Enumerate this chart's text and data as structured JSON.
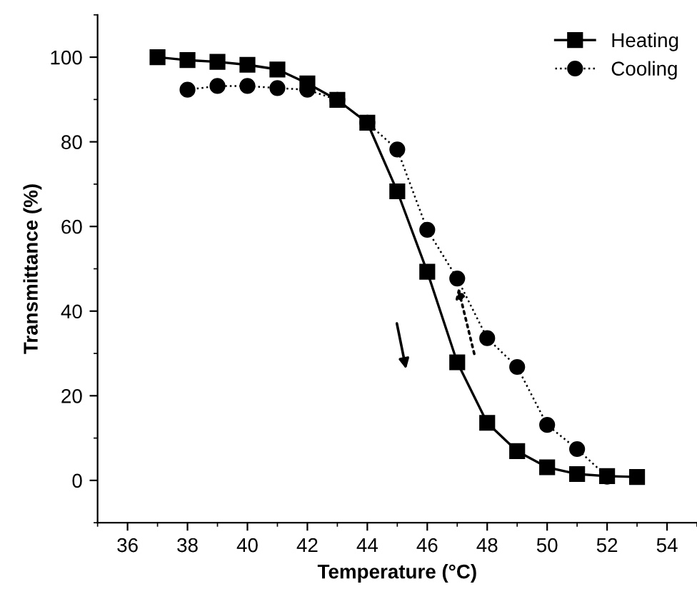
{
  "chart_data": {
    "type": "line",
    "xlabel": "Temperature (°C)",
    "ylabel": "Transmittance (%)",
    "xlim": [
      35,
      55
    ],
    "xticks": [
      36,
      38,
      40,
      42,
      44,
      46,
      48,
      50,
      52,
      54
    ],
    "ylim": [
      -10,
      110
    ],
    "yticks": [
      0,
      20,
      40,
      60,
      80,
      100
    ],
    "grid": false,
    "legend": "top right",
    "series": [
      {
        "name": "Heating",
        "color": "#000000",
        "marker": "square",
        "line_style": "solid",
        "x": [
          37,
          38,
          39,
          40,
          41,
          42,
          43,
          44,
          45,
          46,
          47,
          48,
          49,
          50,
          51,
          52,
          53
        ],
        "values": [
          100,
          99.3,
          98.9,
          98.2,
          97.1,
          93.8,
          89.9,
          84.5,
          68.3,
          49.3,
          27.9,
          13.6,
          6.9,
          3.1,
          1.5,
          1.0,
          0.8
        ]
      },
      {
        "name": "Cooling",
        "color": "#000000",
        "marker": "circle",
        "line_style": "dotted",
        "x": [
          38,
          39,
          40,
          41,
          42,
          43,
          44,
          45,
          46,
          47,
          48,
          49,
          50,
          51,
          52
        ],
        "values": [
          92.3,
          93.2,
          93.2,
          92.7,
          92.3,
          89.9,
          84.5,
          78.2,
          59.2,
          47.7,
          33.6,
          26.8,
          13.1,
          7.4,
          0.9
        ]
      }
    ]
  }
}
